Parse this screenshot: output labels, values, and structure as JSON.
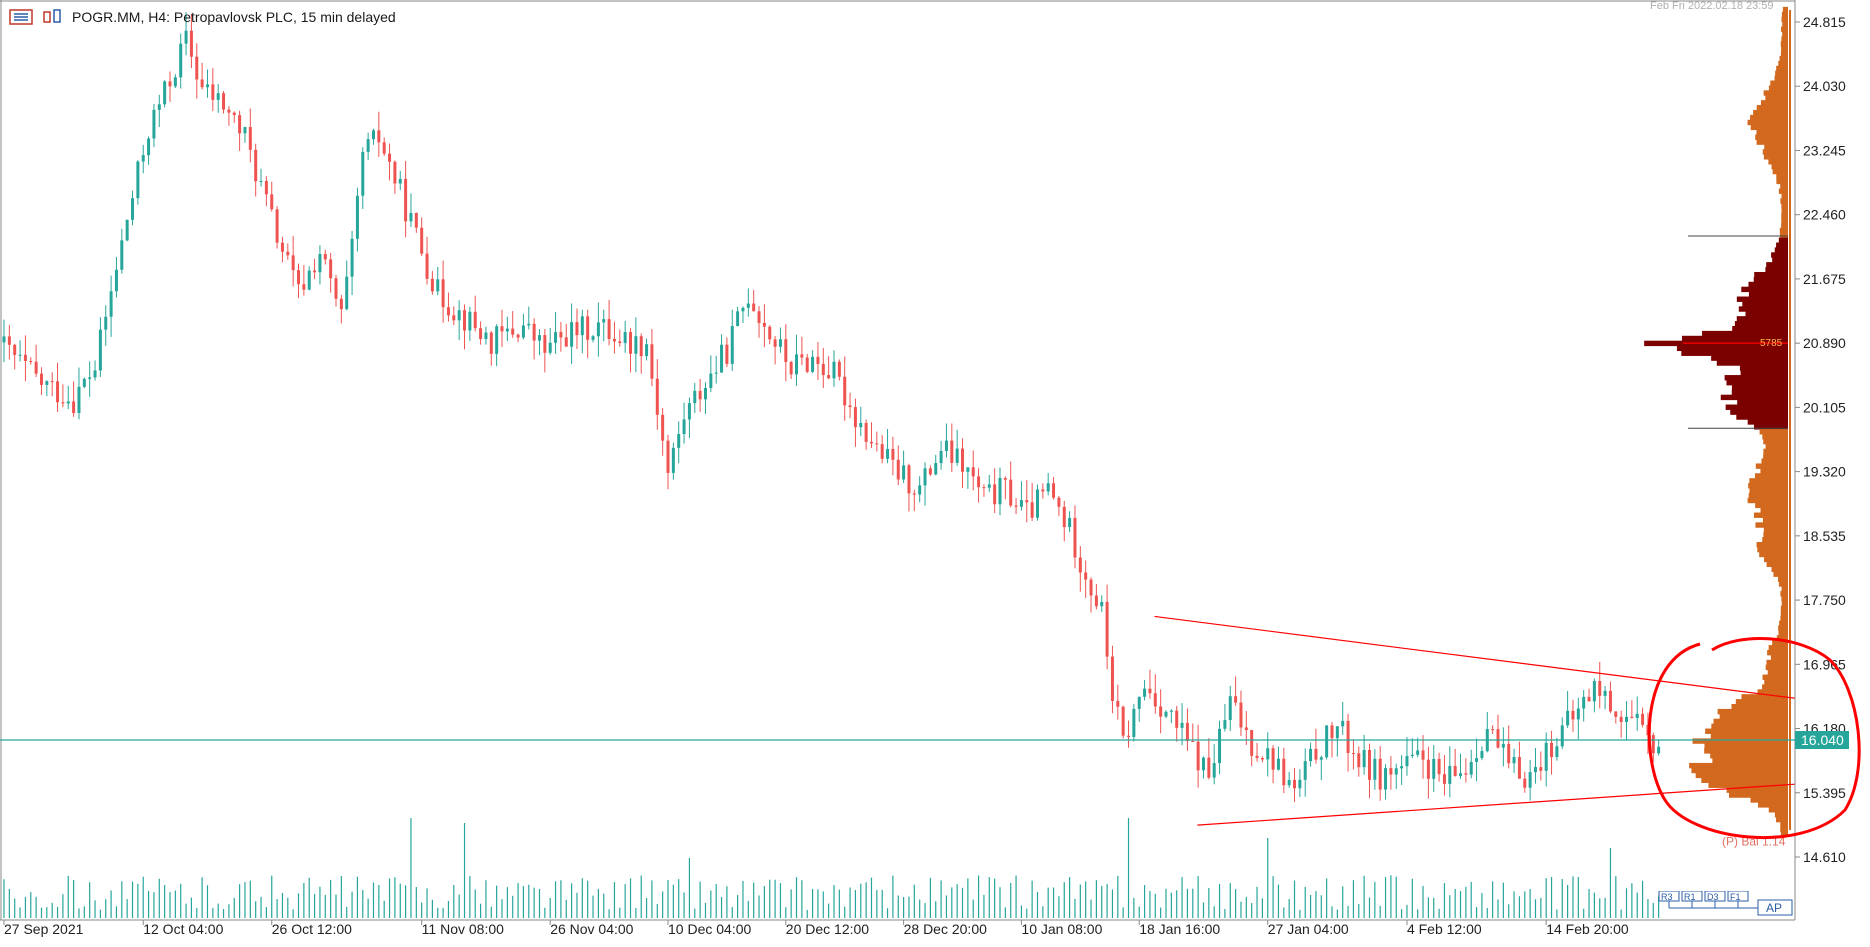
{
  "header": {
    "symbol_label": "POGR.MM, H4:  Petropavlovsk PLC, 15 min delayed",
    "timestamp": "Feb Fri 2022.02.18 23:59",
    "menu_icon": "list-menu-icon",
    "chart_type_icon": "candles-icon"
  },
  "chart_data": {
    "type": "candlestick",
    "symbol": "POGR.MM",
    "timeframe": "H4",
    "x_ticks": [
      "27 Sep 2021",
      "12 Oct 04:00",
      "26 Oct 12:00",
      "11 Nov 08:00",
      "26 Nov 04:00",
      "10 Dec 04:00",
      "20 Dec 12:00",
      "28 Dec 20:00",
      "10 Jan 08:00",
      "18 Jan 16:00",
      "27 Jan 04:00",
      "4 Feb 12:00",
      "14 Feb 20:00"
    ],
    "y_ticks": [
      24.815,
      24.03,
      23.245,
      22.46,
      21.675,
      20.89,
      20.105,
      19.32,
      18.535,
      17.75,
      16.965,
      16.18,
      15.395,
      14.61
    ],
    "ylim": [
      14.3,
      25.0
    ],
    "tick_labels": [
      "24.815",
      "24.030",
      "23.245",
      "22.460",
      "21.675",
      "20.890",
      "20.105",
      "19.320",
      "18.535",
      "17.750",
      "16.965",
      "16.180",
      "15.395",
      "14.610"
    ],
    "current_price": 16.04,
    "current_price_label": "16.040",
    "path_points": [
      [
        0,
        20.9
      ],
      [
        8,
        20.4
      ],
      [
        14,
        20.2
      ],
      [
        18,
        20.6
      ],
      [
        20,
        21.2
      ],
      [
        24,
        22.4
      ],
      [
        28,
        23.5
      ],
      [
        32,
        24.1
      ],
      [
        35,
        24.6
      ],
      [
        38,
        24.0
      ],
      [
        42,
        23.8
      ],
      [
        46,
        23.4
      ],
      [
        52,
        22.2
      ],
      [
        56,
        21.5
      ],
      [
        60,
        22.0
      ],
      [
        64,
        21.2
      ],
      [
        66,
        22.0
      ],
      [
        68,
        23.2
      ],
      [
        71,
        23.4
      ],
      [
        74,
        22.9
      ],
      [
        78,
        22.2
      ],
      [
        82,
        21.5
      ],
      [
        87,
        21.2
      ],
      [
        92,
        20.9
      ],
      [
        98,
        21.1
      ],
      [
        102,
        20.8
      ],
      [
        106,
        21.0
      ],
      [
        112,
        21.1
      ],
      [
        118,
        20.9
      ],
      [
        121,
        20.9
      ],
      [
        123,
        20.1
      ],
      [
        125,
        19.3
      ],
      [
        128,
        20.0
      ],
      [
        132,
        20.4
      ],
      [
        136,
        20.8
      ],
      [
        140,
        21.5
      ],
      [
        144,
        21.0
      ],
      [
        148,
        20.6
      ],
      [
        152,
        20.7
      ],
      [
        156,
        20.5
      ],
      [
        160,
        20.0
      ],
      [
        164,
        19.6
      ],
      [
        168,
        19.3
      ],
      [
        172,
        19.1
      ],
      [
        176,
        19.6
      ],
      [
        180,
        19.4
      ],
      [
        184,
        19.0
      ],
      [
        188,
        19.1
      ],
      [
        192,
        18.8
      ],
      [
        196,
        19.1
      ],
      [
        200,
        18.6
      ],
      [
        204,
        17.9
      ],
      [
        206,
        17.6
      ],
      [
        208,
        16.6
      ],
      [
        210,
        16.0
      ],
      [
        214,
        16.7
      ],
      [
        218,
        16.4
      ],
      [
        222,
        16.0
      ],
      [
        226,
        15.6
      ],
      [
        230,
        16.5
      ],
      [
        234,
        16.0
      ],
      [
        238,
        15.8
      ],
      [
        242,
        15.4
      ],
      [
        246,
        15.9
      ],
      [
        250,
        16.2
      ],
      [
        254,
        15.8
      ],
      [
        258,
        15.6
      ],
      [
        262,
        15.7
      ],
      [
        266,
        15.8
      ],
      [
        270,
        15.5
      ],
      [
        274,
        15.7
      ],
      [
        278,
        16.2
      ],
      [
        282,
        15.7
      ],
      [
        286,
        15.6
      ],
      [
        290,
        16.0
      ],
      [
        294,
        16.3
      ],
      [
        298,
        16.7
      ],
      [
        302,
        16.4
      ],
      [
        306,
        16.2
      ],
      [
        308,
        16.0
      ]
    ],
    "candle_count": 310,
    "volume_max_spikes": [
      [
        76,
        1.0
      ],
      [
        86,
        0.95
      ],
      [
        128,
        0.6
      ],
      [
        210,
        1.0
      ],
      [
        236,
        0.8
      ],
      [
        300,
        0.7
      ]
    ],
    "volume_profile": {
      "value_area_high": 22.2,
      "value_area_low": 19.85,
      "poc": 20.89,
      "poc_label": "5785",
      "bal_label": "(P) Bal 1.14"
    },
    "trendlines": [
      {
        "x1_index": 210,
        "y1": 17.55,
        "x2_index": 335,
        "y2": 16.55
      },
      {
        "x1_index": 218,
        "y1": 15.0,
        "x2_index": 335,
        "y2": 15.5
      }
    ],
    "annotation": "red hand-drawn circle around volume profile",
    "colors": {
      "bull": "#26a69a",
      "bear": "#ef5350",
      "volume": "#26a69a",
      "profile": "#d2691e",
      "profile_value_area": "#7b0000",
      "trendline": "#ff0000",
      "price_line": "#26a69a",
      "poc_line": "#ff0000"
    }
  },
  "toolbar": {
    "buttons": [
      "R3",
      "R1",
      "D3",
      "F1"
    ],
    "ap_label": "AP"
  }
}
